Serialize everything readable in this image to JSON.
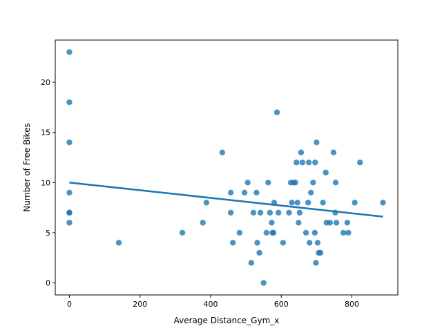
{
  "chart_data": {
    "type": "scatter",
    "title": "",
    "xlabel": "Average Distance_Gym_x",
    "ylabel": "Number of Free Bikes",
    "xlim": [
      -40,
      930
    ],
    "ylim": [
      -1.2,
      24.2
    ],
    "xticks": [
      0,
      200,
      400,
      600,
      800
    ],
    "yticks": [
      0,
      5,
      10,
      15,
      20
    ],
    "grid": false,
    "legend": "none",
    "point_color": "#1f77b4",
    "line_color": "#1f77b4",
    "points": [
      [
        0,
        23
      ],
      [
        0,
        18
      ],
      [
        0,
        14
      ],
      [
        0,
        9
      ],
      [
        0,
        7
      ],
      [
        0,
        7
      ],
      [
        0,
        6
      ],
      [
        140,
        4
      ],
      [
        320,
        5
      ],
      [
        378,
        6
      ],
      [
        388,
        8
      ],
      [
        433,
        13
      ],
      [
        457,
        9
      ],
      [
        457,
        7
      ],
      [
        463,
        4
      ],
      [
        482,
        5
      ],
      [
        496,
        9
      ],
      [
        505,
        10
      ],
      [
        515,
        2
      ],
      [
        521,
        7
      ],
      [
        530,
        9
      ],
      [
        532,
        4
      ],
      [
        538,
        3
      ],
      [
        541,
        7
      ],
      [
        550,
        0
      ],
      [
        558,
        5
      ],
      [
        563,
        10
      ],
      [
        568,
        7
      ],
      [
        573,
        6
      ],
      [
        575,
        5
      ],
      [
        578,
        5
      ],
      [
        580,
        8
      ],
      [
        588,
        17
      ],
      [
        592,
        7
      ],
      [
        605,
        4
      ],
      [
        622,
        7
      ],
      [
        627,
        10
      ],
      [
        630,
        8
      ],
      [
        635,
        10
      ],
      [
        640,
        10
      ],
      [
        643,
        12
      ],
      [
        646,
        8
      ],
      [
        649,
        6
      ],
      [
        652,
        7
      ],
      [
        656,
        13
      ],
      [
        660,
        12
      ],
      [
        670,
        5
      ],
      [
        676,
        8
      ],
      [
        678,
        12
      ],
      [
        680,
        4
      ],
      [
        684,
        9
      ],
      [
        690,
        10
      ],
      [
        695,
        5
      ],
      [
        696,
        12
      ],
      [
        698,
        2
      ],
      [
        700,
        14
      ],
      [
        703,
        4
      ],
      [
        706,
        3
      ],
      [
        711,
        3
      ],
      [
        718,
        8
      ],
      [
        726,
        11
      ],
      [
        728,
        6
      ],
      [
        738,
        6
      ],
      [
        748,
        13
      ],
      [
        753,
        7
      ],
      [
        754,
        10
      ],
      [
        756,
        6
      ],
      [
        776,
        5
      ],
      [
        787,
        6
      ],
      [
        790,
        5
      ],
      [
        808,
        8
      ],
      [
        823,
        12
      ],
      [
        888,
        8
      ]
    ],
    "regression_line": {
      "x": [
        0,
        888
      ],
      "y": [
        10.0,
        6.6
      ]
    }
  }
}
